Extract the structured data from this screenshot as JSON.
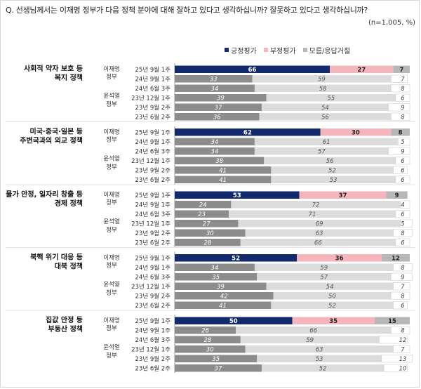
{
  "question": "Q. 선생님께서는 이재명 정부가 다음 정책 분야에 대해 잘하고 있다고 생각하십니까? 잘못하고 있다고 생각하십니까?",
  "note": "(n=1,005, %)",
  "colors": {
    "positive": "#122a6b",
    "positive_old": "#8c8c8c",
    "negative": "#f4b6bc",
    "negative_old": "#dcdcdc",
    "dontknow": "#b7b7b7",
    "dontknow_old": "#ffffff"
  },
  "chart_data": {
    "type": "bar",
    "stacked": true,
    "orientation": "horizontal",
    "xlim": [
      0,
      100
    ],
    "legend": {
      "position": "top-right",
      "entries": [
        "긍정평가",
        "부정평가",
        "모름/응답거절"
      ]
    },
    "series_names": [
      "긍정평가",
      "부정평가",
      "모름/응답거절"
    ],
    "groups": [
      {
        "policy": "사회적 약자 보호 등 복지 정책",
        "label_lines": [
          "사회적 약자 보호 등",
          "복지 정책"
        ],
        "current": {
          "gov": [
            "이재명",
            "정부"
          ],
          "period": "25년 9월 1주",
          "values": [
            66,
            27,
            7
          ]
        },
        "previous_gov": [
          "윤석열",
          "정부"
        ],
        "previous": [
          {
            "period": "24년 9월 1주",
            "values": [
              33,
              59,
              7
            ]
          },
          {
            "period": "24년 6월 3주",
            "values": [
              34,
              58,
              8
            ]
          },
          {
            "period": "23년 12월 1주",
            "values": [
              39,
              55,
              6
            ]
          },
          {
            "period": "23년 9월 2주",
            "values": [
              37,
              54,
              9
            ]
          },
          {
            "period": "23년 6월 2주",
            "values": [
              36,
              56,
              8
            ]
          }
        ]
      },
      {
        "policy": "미국·중국·일본 등 주변국과의 외교 정책",
        "label_lines": [
          "미국·중국·일본 등",
          "주변국과의 외교 정책"
        ],
        "current": {
          "gov": [
            "이재명",
            "정부"
          ],
          "period": "25년 9월 1주",
          "values": [
            62,
            30,
            8
          ]
        },
        "previous_gov": [
          "윤석열",
          "정부"
        ],
        "previous": [
          {
            "period": "24년 9월 1주",
            "values": [
              34,
              61,
              5
            ]
          },
          {
            "period": "24년 6월 3주",
            "values": [
              34,
              57,
              9
            ]
          },
          {
            "period": "23년 12월 1주",
            "values": [
              38,
              56,
              6
            ]
          },
          {
            "period": "23년 9월 2주",
            "values": [
              41,
              52,
              6
            ]
          },
          {
            "period": "23년 6월 2주",
            "values": [
              41,
              53,
              6
            ]
          }
        ]
      },
      {
        "policy": "물가 안정, 일자리 창출 등 경제 정책",
        "label_lines": [
          "물가 안정, 일자리 창출 등",
          "경제 정책"
        ],
        "current": {
          "gov": [
            "이재명",
            "정부"
          ],
          "period": "25년 9월 1주",
          "values": [
            53,
            37,
            9
          ]
        },
        "previous_gov": [
          "윤석열",
          "정부"
        ],
        "previous": [
          {
            "period": "24년 9월 1주",
            "values": [
              24,
              72,
              4
            ]
          },
          {
            "period": "24년 6월 3주",
            "values": [
              23,
              71,
              6
            ]
          },
          {
            "period": "23년 12월 1주",
            "values": [
              27,
              69,
              5
            ]
          },
          {
            "period": "23년 9월 2주",
            "values": [
              30,
              63,
              8
            ]
          },
          {
            "period": "23년 6월 2주",
            "values": [
              28,
              66,
              6
            ]
          }
        ]
      },
      {
        "policy": "북핵 위기 대응 등 대북 정책",
        "label_lines": [
          "북핵 위기 대응 등",
          "대북 정책"
        ],
        "current": {
          "gov": [
            "이재명",
            "정부"
          ],
          "period": "25년 9월 1주",
          "values": [
            52,
            36,
            12
          ]
        },
        "previous_gov": [
          "윤석열",
          "정부"
        ],
        "previous": [
          {
            "period": "24년 9월 1주",
            "values": [
              34,
              59,
              8
            ]
          },
          {
            "period": "24년 6월 3주",
            "values": [
              35,
              57,
              9
            ]
          },
          {
            "period": "23년 12월 1주",
            "values": [
              39,
              54,
              7
            ]
          },
          {
            "period": "23년 9월 2주",
            "values": [
              42,
              50,
              8
            ]
          },
          {
            "period": "23년 6월 2주",
            "values": [
              41,
              52,
              6
            ]
          }
        ]
      },
      {
        "policy": "집값 안정 등 부동산 정책",
        "label_lines": [
          "집값 안정 등",
          "부동산 정책"
        ],
        "current": {
          "gov": [
            "이재명",
            "정부"
          ],
          "period": "25년 9월 1주",
          "values": [
            50,
            35,
            15
          ]
        },
        "previous_gov": [
          "윤석열",
          "정부"
        ],
        "previous": [
          {
            "period": "24년 9월 1주",
            "values": [
              26,
              66,
              8
            ]
          },
          {
            "period": "24년 6월 3주",
            "values": [
              28,
              59,
              12
            ]
          },
          {
            "period": "23년 12월 1주",
            "values": [
              30,
              63,
              7
            ]
          },
          {
            "period": "23년 9월 2주",
            "values": [
              35,
              53,
              13
            ]
          },
          {
            "period": "23년 6월 2주",
            "values": [
              37,
              52,
              10
            ]
          }
        ]
      }
    ]
  }
}
